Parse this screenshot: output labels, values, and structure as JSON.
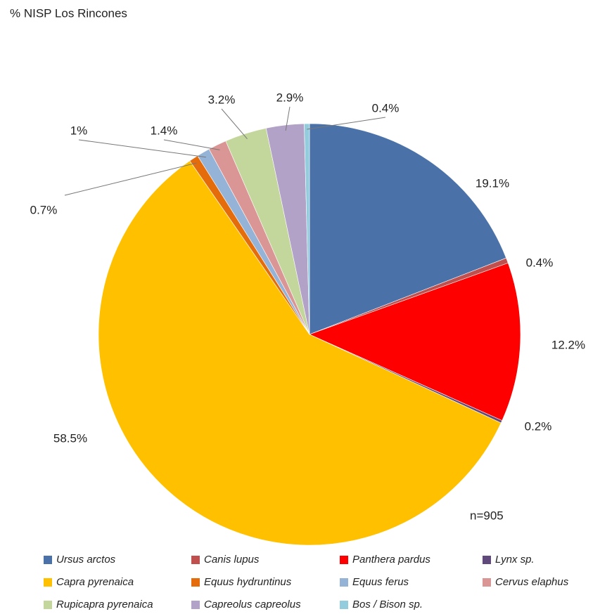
{
  "chart_data": {
    "type": "pie",
    "title": "% NISP Los Rincones",
    "annotation": "n=905",
    "categories": [
      "Ursus arctos",
      "Canis lupus",
      "Panthera pardus",
      "Lynx sp.",
      "Capra pyrenaica",
      "Equus hydruntinus",
      "Equus ferus",
      "Cervus elaphus",
      "Rupicapra pyrenaica",
      "Capreolus capreolus",
      "Bos / Bison sp."
    ],
    "values": [
      19.1,
      0.4,
      12.2,
      0.2,
      58.5,
      0.7,
      1,
      1.4,
      3.2,
      2.9,
      0.4
    ],
    "value_labels": [
      "19.1%",
      "0.4%",
      "12.2%",
      "0.2%",
      "58.5%",
      "0.7%",
      "1%",
      "1.4%",
      "3.2%",
      "2.9%",
      "0.4%"
    ],
    "colors": [
      "#4a72a9",
      "#c0504d",
      "#ff0000",
      "#604a7b",
      "#ffc000",
      "#e46c0a",
      "#95b3d7",
      "#d99694",
      "#c3d69b",
      "#b2a2c7",
      "#93cddd"
    ],
    "legend": "bottom"
  }
}
